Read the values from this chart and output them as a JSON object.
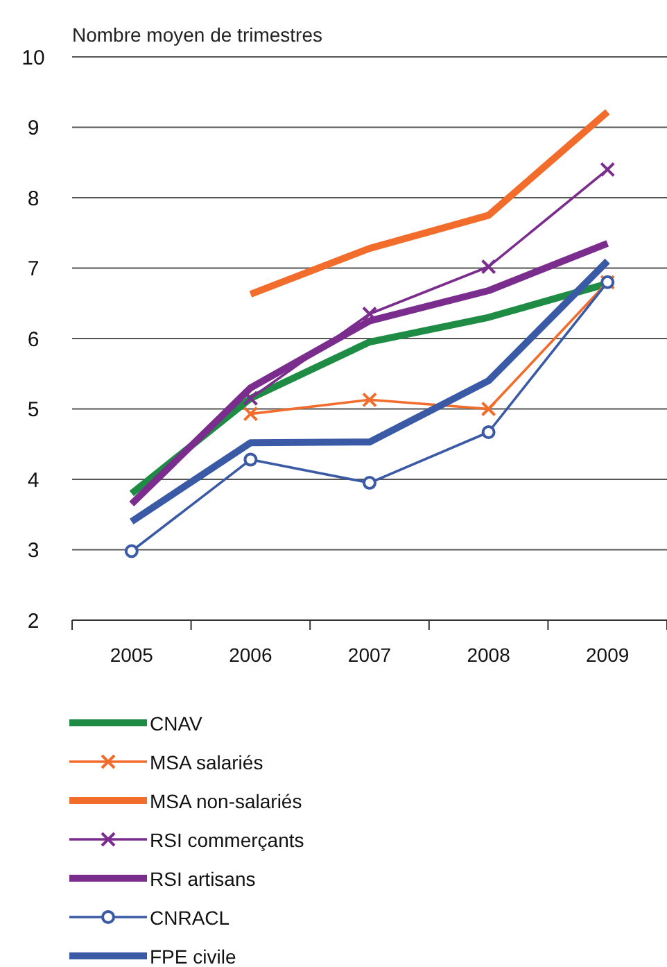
{
  "chart_data": {
    "type": "line",
    "ylabel": "Nombre moyen de trimestres",
    "categories": [
      "2005",
      "2006",
      "2007",
      "2008",
      "2009"
    ],
    "series": [
      {
        "name": "CNAV",
        "color": "#1e8c45",
        "marker": "none",
        "values": [
          3.8,
          5.15,
          5.95,
          6.3,
          6.78
        ]
      },
      {
        "name": "MSA salariés",
        "color": "#f26c2c",
        "marker": "cross",
        "values": [
          null,
          4.93,
          5.13,
          5.0,
          6.8
        ]
      },
      {
        "name": "MSA non-salariés",
        "color": "#f26c2c",
        "marker": "none",
        "values": [
          null,
          6.63,
          7.28,
          7.75,
          9.22
        ]
      },
      {
        "name": "RSI commerçants",
        "color": "#7b2d8e",
        "marker": "cross",
        "values": [
          null,
          5.15,
          6.35,
          7.02,
          8.4
        ]
      },
      {
        "name": "RSI artisans",
        "color": "#7b2d8e",
        "marker": "none",
        "values": [
          3.65,
          5.3,
          6.25,
          6.68,
          7.35
        ]
      },
      {
        "name": "CNRACL",
        "color": "#3b5aa6",
        "marker": "circle",
        "values": [
          2.98,
          4.28,
          3.95,
          4.67,
          6.8
        ]
      },
      {
        "name": "FPE civile",
        "color": "#3b5aa6",
        "marker": "none",
        "values": [
          3.4,
          4.52,
          4.53,
          5.4,
          7.1
        ]
      }
    ],
    "ylim": [
      2,
      10
    ],
    "yticks": [
      2,
      3,
      4,
      5,
      6,
      7,
      8,
      9,
      10
    ],
    "grid": "y",
    "legend": "bottom"
  }
}
